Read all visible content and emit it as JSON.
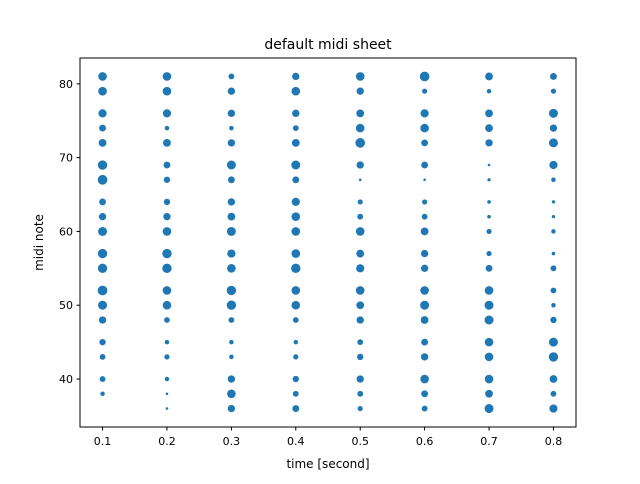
{
  "chart_data": {
    "type": "scatter",
    "title": "default midi sheet",
    "xlabel": "time [second]",
    "ylabel": "midi note",
    "xlim": [
      0.065,
      0.835
    ],
    "ylim": [
      33.5,
      83.5
    ],
    "x_ticks": [
      "0.1",
      "0.2",
      "0.3",
      "0.4",
      "0.5",
      "0.6",
      "0.7",
      "0.8"
    ],
    "y_ticks": [
      "40",
      "50",
      "60",
      "70",
      "80"
    ],
    "color": "#1f77b4",
    "grid": false,
    "size_encoding": "marker area encodes note intensity (relative 0-1)",
    "times": [
      0.1,
      0.2,
      0.3,
      0.4,
      0.5,
      0.6,
      0.7,
      0.8
    ],
    "notes": [
      81,
      79,
      76,
      74,
      72,
      69,
      67,
      64,
      62,
      60,
      57,
      55,
      52,
      50,
      48,
      45,
      43,
      40,
      38,
      36
    ],
    "intensities": [
      [
        0.55,
        0.55,
        0.25,
        0.4,
        0.55,
        0.7,
        0.45,
        0.35
      ],
      [
        0.55,
        0.55,
        0.4,
        0.55,
        0.4,
        0.2,
        0.15,
        0.2
      ],
      [
        0.5,
        0.5,
        0.4,
        0.4,
        0.45,
        0.5,
        0.45,
        0.6
      ],
      [
        0.35,
        0.15,
        0.15,
        0.25,
        0.55,
        0.55,
        0.45,
        0.4
      ],
      [
        0.45,
        0.45,
        0.4,
        0.45,
        0.7,
        0.35,
        0.4,
        0.6
      ],
      [
        0.65,
        0.35,
        0.6,
        0.6,
        0.4,
        0.35,
        0.05,
        0.5
      ],
      [
        0.7,
        0.3,
        0.35,
        0.35,
        0.05,
        0.05,
        0.08,
        0.15
      ],
      [
        0.35,
        0.3,
        0.4,
        0.5,
        0.2,
        0.2,
        0.1,
        0.08
      ],
      [
        0.4,
        0.4,
        0.45,
        0.55,
        0.25,
        0.25,
        0.1,
        0.08
      ],
      [
        0.6,
        0.55,
        0.6,
        0.55,
        0.55,
        0.45,
        0.2,
        0.15
      ],
      [
        0.65,
        0.65,
        0.5,
        0.55,
        0.45,
        0.4,
        0.2,
        0.1
      ],
      [
        0.65,
        0.65,
        0.55,
        0.65,
        0.5,
        0.4,
        0.35,
        0.25
      ],
      [
        0.7,
        0.55,
        0.65,
        0.55,
        0.55,
        0.55,
        0.55,
        0.25
      ],
      [
        0.6,
        0.55,
        0.65,
        0.55,
        0.45,
        0.6,
        0.6,
        0.15
      ],
      [
        0.4,
        0.25,
        0.25,
        0.25,
        0.4,
        0.45,
        0.6,
        0.3
      ],
      [
        0.3,
        0.15,
        0.15,
        0.15,
        0.25,
        0.35,
        0.55,
        0.6
      ],
      [
        0.25,
        0.2,
        0.15,
        0.2,
        0.3,
        0.4,
        0.55,
        0.65
      ],
      [
        0.25,
        0.15,
        0.4,
        0.3,
        0.4,
        0.55,
        0.55,
        0.45
      ],
      [
        0.15,
        0.05,
        0.55,
        0.25,
        0.25,
        0.35,
        0.45,
        0.25
      ],
      [
        0.0,
        0.05,
        0.4,
        0.35,
        0.2,
        0.25,
        0.6,
        0.5
      ]
    ]
  }
}
